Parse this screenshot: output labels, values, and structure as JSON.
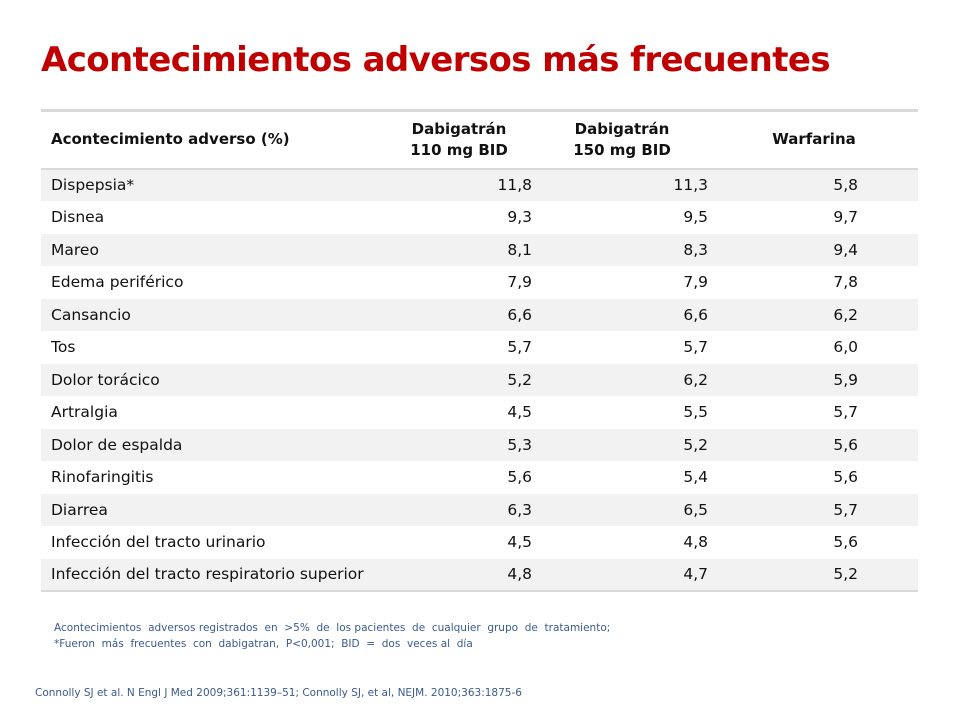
{
  "slide": {
    "title": "Acontecimientos adversos más frecuentes"
  },
  "table": {
    "headers": [
      {
        "line1": "Acontecimiento adverso (%)",
        "line2": ""
      },
      {
        "line1": "Dabigatrán",
        "line2": "110 mg BID"
      },
      {
        "line1": "Dabigatrán",
        "line2": "150 mg BID"
      },
      {
        "line1": "Warfarina",
        "line2": ""
      }
    ],
    "rows": [
      [
        "Dispepsia*",
        "11,8",
        "11,3",
        "5,8"
      ],
      [
        "Disnea",
        "9,3",
        "9,5",
        "9,7"
      ],
      [
        "Mareo",
        "8,1",
        "8,3",
        "9,4"
      ],
      [
        "Edema periférico",
        "7,9",
        "7,9",
        "7,8"
      ],
      [
        "Cansancio",
        "6,6",
        "6,6",
        "6,2"
      ],
      [
        "Tos",
        "5,7",
        "5,7",
        "6,0"
      ],
      [
        "Dolor torácico",
        "5,2",
        "6,2",
        "5,9"
      ],
      [
        "Artralgia",
        "4,5",
        "5,5",
        "5,7"
      ],
      [
        "Dolor de espalda",
        "5,3",
        "5,2",
        "5,6"
      ],
      [
        "Rinofaringitis",
        "5,6",
        "5,4",
        "5,6"
      ],
      [
        "Diarrea",
        "6,3",
        "6,5",
        "5,7"
      ],
      [
        "Infección del tracto urinario",
        "4,5",
        "4,8",
        "5,6"
      ],
      [
        "Infección del tracto respiratorio superior",
        "4,8",
        "4,7",
        "5,2"
      ]
    ]
  },
  "footnote": {
    "line1": "Acontecimientos  adversos registrados  en  >5%  de  los pacientes  de  cualquier  grupo  de  tratamiento;",
    "line2": "*Fueron  más  frecuentes  con  dabigatran,  P<0,001;  BID  =  dos  veces al  día"
  },
  "reference": "Connolly SJ et al. N Engl J Med 2009;361:1139–51; Connolly SJ, et al, NEJM. 2010;363:1875-6",
  "colors": {
    "title": "#c00000",
    "row_stripe": "#f2f2f2",
    "rule": "#d9d9d9",
    "footnote": "#3a5a8c"
  }
}
